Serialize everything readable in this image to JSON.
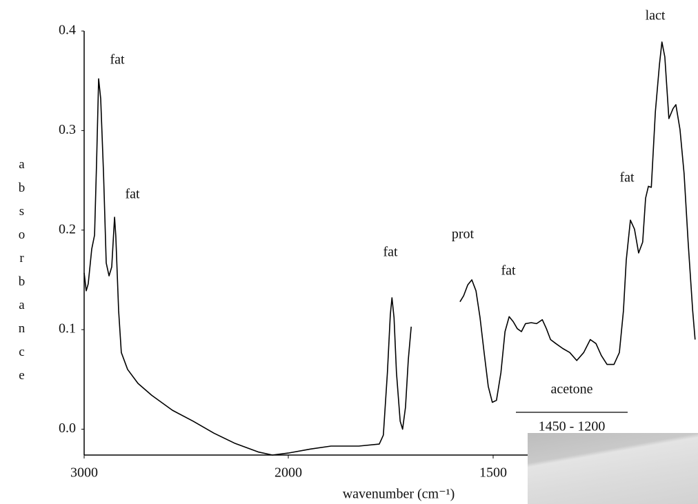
{
  "chart_data": {
    "type": "line",
    "ylabel": "absorbance",
    "xlabel": "wavenumber (cm⁻¹)",
    "x": [
      3000,
      2990,
      2980,
      2963,
      2949,
      2939,
      2929,
      2919,
      2905,
      2892,
      2878,
      2865,
      2851,
      2845,
      2831,
      2818,
      2787,
      2736,
      2669,
      2568,
      2466,
      2365,
      2264,
      2145,
      2078,
      2000,
      1946,
      1896,
      1828,
      1778,
      1768,
      1758,
      1751,
      1747,
      1742,
      1736,
      1727,
      1721,
      1714,
      1707,
      1700,
      1640,
      1581,
      1572,
      1562,
      1552,
      1542,
      1532,
      1522,
      1512,
      1502,
      1492,
      1481,
      1471,
      1461,
      1451,
      1441,
      1431,
      1421,
      1407,
      1394,
      1380,
      1370,
      1360,
      1347,
      1330,
      1313,
      1296,
      1279,
      1263,
      1249,
      1236,
      1222,
      1205,
      1192,
      1182,
      1175,
      1165,
      1155,
      1145,
      1135,
      1128,
      1121,
      1114,
      1104,
      1094,
      1088,
      1081,
      1071,
      1061,
      1054,
      1044,
      1034,
      1024,
      1013,
      1007
    ],
    "values": [
      0.157,
      0.139,
      0.146,
      0.181,
      0.195,
      0.27,
      0.352,
      0.332,
      0.257,
      0.167,
      0.154,
      0.163,
      0.213,
      0.194,
      0.119,
      0.077,
      0.06,
      0.046,
      0.034,
      0.019,
      0.008,
      -0.004,
      -0.014,
      -0.023,
      -0.026,
      -0.024,
      -0.02,
      -0.017,
      -0.017,
      -0.015,
      -0.006,
      0.057,
      0.115,
      0.132,
      0.112,
      0.057,
      0.008,
      0.0,
      0.022,
      0.07,
      0.103,
      null,
      0.128,
      0.134,
      0.145,
      0.15,
      0.139,
      0.112,
      0.077,
      0.043,
      0.027,
      0.029,
      0.057,
      0.098,
      0.113,
      0.108,
      0.101,
      0.098,
      0.106,
      0.107,
      0.106,
      0.11,
      0.101,
      0.09,
      0.086,
      0.081,
      0.077,
      0.069,
      0.077,
      0.09,
      0.086,
      0.074,
      0.065,
      0.065,
      0.077,
      0.119,
      0.17,
      0.21,
      0.201,
      0.177,
      0.188,
      0.232,
      0.244,
      0.243,
      0.319,
      0.367,
      0.389,
      0.374,
      0.312,
      0.322,
      0.326,
      0.301,
      0.257,
      0.188,
      0.119,
      0.09
    ],
    "color": "#000000",
    "xlim": [
      3000,
      1000
    ],
    "x_scale_break": 2000,
    "xticks": [
      3000,
      2000,
      1500
    ],
    "ylim": [
      -0.026,
      0.4
    ],
    "yticks": [
      {
        "value": 0,
        "label": "0.0"
      },
      0.1,
      0.2,
      0.3,
      0.4
    ],
    "annotations": [
      "fat",
      "fat",
      "fat",
      "prot",
      "fat",
      "fat",
      "lact",
      "acetone",
      "1450 - 1200"
    ]
  }
}
